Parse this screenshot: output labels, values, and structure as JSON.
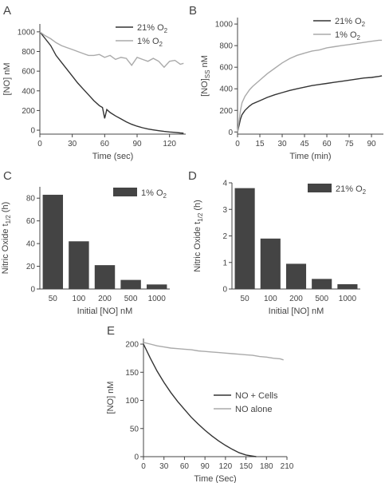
{
  "chart_data": [
    {
      "panel": "A",
      "type": "line",
      "xlabel": "Time (sec)",
      "ylabel": "[NO] nM",
      "xlim": [
        0,
        135
      ],
      "ylim": [
        -40,
        1080
      ],
      "xticks": [
        0,
        30,
        60,
        90,
        120
      ],
      "yticks": [
        0,
        200,
        400,
        600,
        800,
        1000
      ],
      "legend_position": "top-right",
      "series": [
        {
          "name": "21% O2",
          "color": "#333333",
          "x": [
            0,
            5,
            10,
            15,
            20,
            25,
            30,
            35,
            40,
            45,
            50,
            55,
            58,
            60,
            62,
            65,
            70,
            75,
            80,
            85,
            90,
            95,
            100,
            105,
            110,
            115,
            120,
            125,
            130,
            133
          ],
          "y": [
            1000,
            930,
            860,
            760,
            690,
            620,
            550,
            480,
            420,
            360,
            300,
            250,
            230,
            120,
            210,
            180,
            145,
            115,
            85,
            60,
            40,
            25,
            12,
            3,
            -5,
            -12,
            -18,
            -22,
            -28,
            -30
          ]
        },
        {
          "name": "1% O2",
          "color": "#aaaaaa",
          "x": [
            0,
            5,
            10,
            15,
            20,
            25,
            30,
            35,
            40,
            45,
            50,
            55,
            60,
            65,
            70,
            75,
            80,
            85,
            90,
            95,
            100,
            105,
            110,
            115,
            120,
            125,
            130,
            133
          ],
          "y": [
            1000,
            960,
            930,
            890,
            860,
            840,
            820,
            800,
            780,
            760,
            760,
            770,
            740,
            760,
            720,
            740,
            730,
            660,
            740,
            720,
            700,
            730,
            700,
            640,
            700,
            710,
            670,
            680
          ]
        }
      ]
    },
    {
      "panel": "B",
      "type": "line",
      "xlabel": "Time (min)",
      "ylabel": "[NO]SS nM",
      "xlim": [
        0,
        98
      ],
      "ylim": [
        -20,
        1060
      ],
      "xticks": [
        0,
        15,
        30,
        45,
        60,
        75,
        90
      ],
      "yticks": [
        0,
        200,
        400,
        600,
        800,
        1000
      ],
      "legend_position": "top-right",
      "series": [
        {
          "name": "21% O2",
          "color": "#333333",
          "x": [
            0,
            1,
            2,
            3,
            5,
            8,
            10,
            15,
            20,
            25,
            30,
            35,
            40,
            45,
            50,
            55,
            60,
            65,
            70,
            75,
            80,
            85,
            90,
            95,
            97
          ],
          "y": [
            0,
            60,
            120,
            160,
            200,
            240,
            260,
            290,
            320,
            345,
            365,
            385,
            400,
            415,
            430,
            440,
            450,
            460,
            470,
            480,
            490,
            500,
            505,
            515,
            520
          ]
        },
        {
          "name": "1% O2",
          "color": "#aaaaaa",
          "x": [
            0,
            1,
            2,
            3,
            5,
            8,
            10,
            15,
            20,
            25,
            30,
            35,
            40,
            45,
            50,
            55,
            60,
            65,
            70,
            75,
            80,
            85,
            90,
            95,
            97
          ],
          "y": [
            0,
            100,
            200,
            270,
            330,
            390,
            420,
            480,
            540,
            590,
            640,
            680,
            710,
            730,
            750,
            760,
            780,
            790,
            800,
            810,
            820,
            830,
            840,
            850,
            850
          ]
        }
      ]
    },
    {
      "panel": "C",
      "type": "bar",
      "xlabel": "Initial [NO] nM",
      "ylabel": "Nitric Oxide t1/2 (h)",
      "categories": [
        "50",
        "100",
        "200",
        "500",
        "1000"
      ],
      "values": [
        83,
        42,
        21,
        8,
        4
      ],
      "ylim": [
        0,
        90
      ],
      "yticks": [
        0,
        20,
        40,
        60,
        80
      ],
      "series_name": "1% O2",
      "color": "#444444",
      "legend_position": "top-right"
    },
    {
      "panel": "D",
      "type": "bar",
      "xlabel": "Initial [NO] nM",
      "ylabel": "Nitric Oxide t1/2 (h)",
      "categories": [
        "50",
        "100",
        "200",
        "500",
        "1000"
      ],
      "values": [
        3.8,
        1.9,
        0.95,
        0.38,
        0.18
      ],
      "ylim": [
        0,
        4
      ],
      "yticks": [
        0,
        1,
        2,
        3,
        4
      ],
      "series_name": "21% O2",
      "color": "#444444",
      "legend_position": "top-right"
    },
    {
      "panel": "E",
      "type": "line",
      "xlabel": "Time (Sec)",
      "ylabel": "[NO] nM",
      "xlim": [
        0,
        210
      ],
      "ylim": [
        0,
        210
      ],
      "xticks": [
        0,
        30,
        60,
        90,
        120,
        150,
        180,
        210
      ],
      "yticks": [
        0,
        50,
        100,
        150,
        200
      ],
      "legend_position": "middle-right",
      "series": [
        {
          "name": "NO + Cells",
          "color": "#333333",
          "x": [
            0,
            10,
            20,
            30,
            40,
            50,
            60,
            70,
            80,
            90,
            100,
            110,
            120,
            130,
            140,
            150,
            160,
            165
          ],
          "y": [
            200,
            175,
            152,
            132,
            114,
            98,
            84,
            70,
            58,
            47,
            37,
            28,
            20,
            13,
            7,
            3,
            1,
            0
          ]
        },
        {
          "name": "NO alone",
          "color": "#aaaaaa",
          "x": [
            0,
            10,
            20,
            30,
            40,
            50,
            60,
            70,
            80,
            90,
            100,
            110,
            120,
            130,
            140,
            150,
            160,
            170,
            180,
            190,
            200,
            205
          ],
          "y": [
            203,
            200,
            197,
            195,
            193,
            192,
            191,
            190,
            188,
            187,
            186,
            185,
            184,
            183,
            182,
            181,
            180,
            178,
            177,
            175,
            174,
            172
          ]
        }
      ]
    }
  ]
}
